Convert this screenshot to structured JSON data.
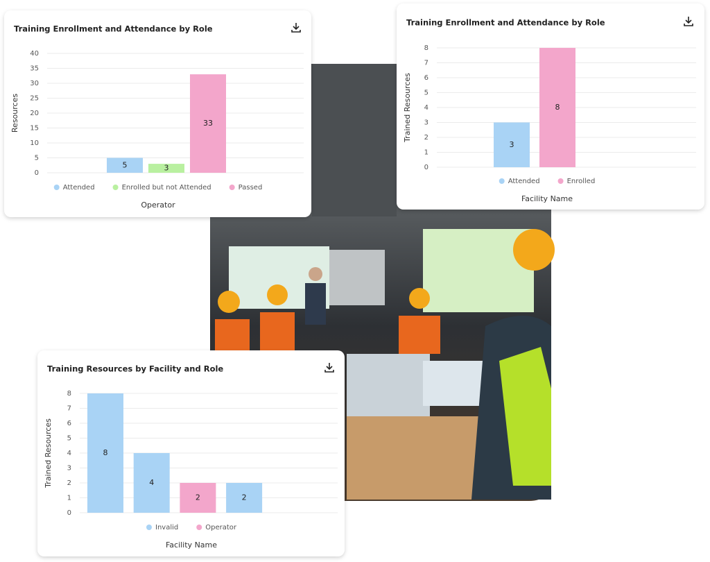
{
  "chart_data": [
    {
      "type": "bar",
      "title": "Training Enrollment and Attendance by Role",
      "y_label": "Resources",
      "x_label": "Operator",
      "categories": [
        null,
        null,
        null
      ],
      "series": [
        {
          "name": "Attended",
          "color": "#a9d3f5",
          "values": [
            5,
            null,
            null
          ]
        },
        {
          "name": "Enrolled but not Attended",
          "color": "#b9f0a0",
          "values": [
            null,
            3,
            null
          ]
        },
        {
          "name": "Passed",
          "color": "#f3a6cb",
          "values": [
            null,
            null,
            33
          ]
        }
      ],
      "ylim": [
        0,
        40
      ],
      "yticks": [
        0,
        5,
        10,
        15,
        20,
        25,
        30,
        35,
        40
      ],
      "grid": true
    },
    {
      "type": "bar",
      "title": "Training Enrollment and Attendance by Role",
      "y_label": "Trained Resources",
      "x_label": "Facility Name",
      "categories": [
        null,
        null
      ],
      "series": [
        {
          "name": "Attended",
          "color": "#a9d3f5",
          "values": [
            3,
            null
          ]
        },
        {
          "name": "Enrolled",
          "color": "#f3a6cb",
          "values": [
            null,
            8
          ]
        }
      ],
      "ylim": [
        0,
        8
      ],
      "yticks": [
        0,
        1,
        2,
        3,
        4,
        5,
        6,
        7,
        8
      ],
      "grid": true
    },
    {
      "type": "bar",
      "title": "Training Resources by Facility and Role",
      "y_label": "Trained Resources",
      "x_label": "Facility Name",
      "categories": [
        null,
        null,
        null,
        null
      ],
      "series": [
        {
          "name": "Invalid",
          "color": "#a9d3f5",
          "values": [
            8,
            4,
            null,
            2
          ]
        },
        {
          "name": "Operator",
          "color": "#f3a6cb",
          "values": [
            null,
            null,
            2,
            null
          ]
        }
      ],
      "ylim": [
        0,
        8
      ],
      "yticks": [
        0,
        1,
        2,
        3,
        4,
        5,
        6,
        7,
        8
      ],
      "grid": true
    }
  ]
}
